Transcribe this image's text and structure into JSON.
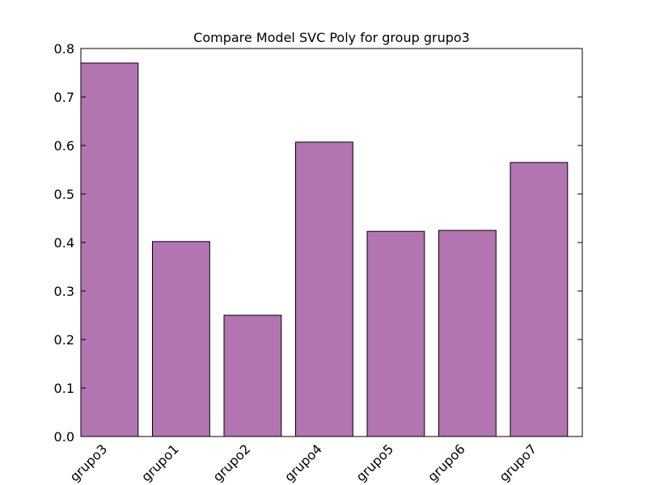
{
  "chart_data": {
    "type": "bar",
    "title": "Compare Model SVC Poly for group grupo3",
    "xlabel": "",
    "ylabel": "",
    "categories": [
      "grupo3",
      "grupo1",
      "grupo2",
      "grupo4",
      "grupo5",
      "grupo6",
      "grupo7"
    ],
    "values": [
      0.77,
      0.402,
      0.25,
      0.607,
      0.423,
      0.425,
      0.565
    ],
    "ylim": [
      0,
      0.8
    ],
    "yticks": [
      "0.0",
      "0.1",
      "0.2",
      "0.3",
      "0.4",
      "0.5",
      "0.6",
      "0.7",
      "0.8"
    ],
    "grid": false,
    "bar_color": "#b275b1",
    "edge_color": "#000000"
  }
}
